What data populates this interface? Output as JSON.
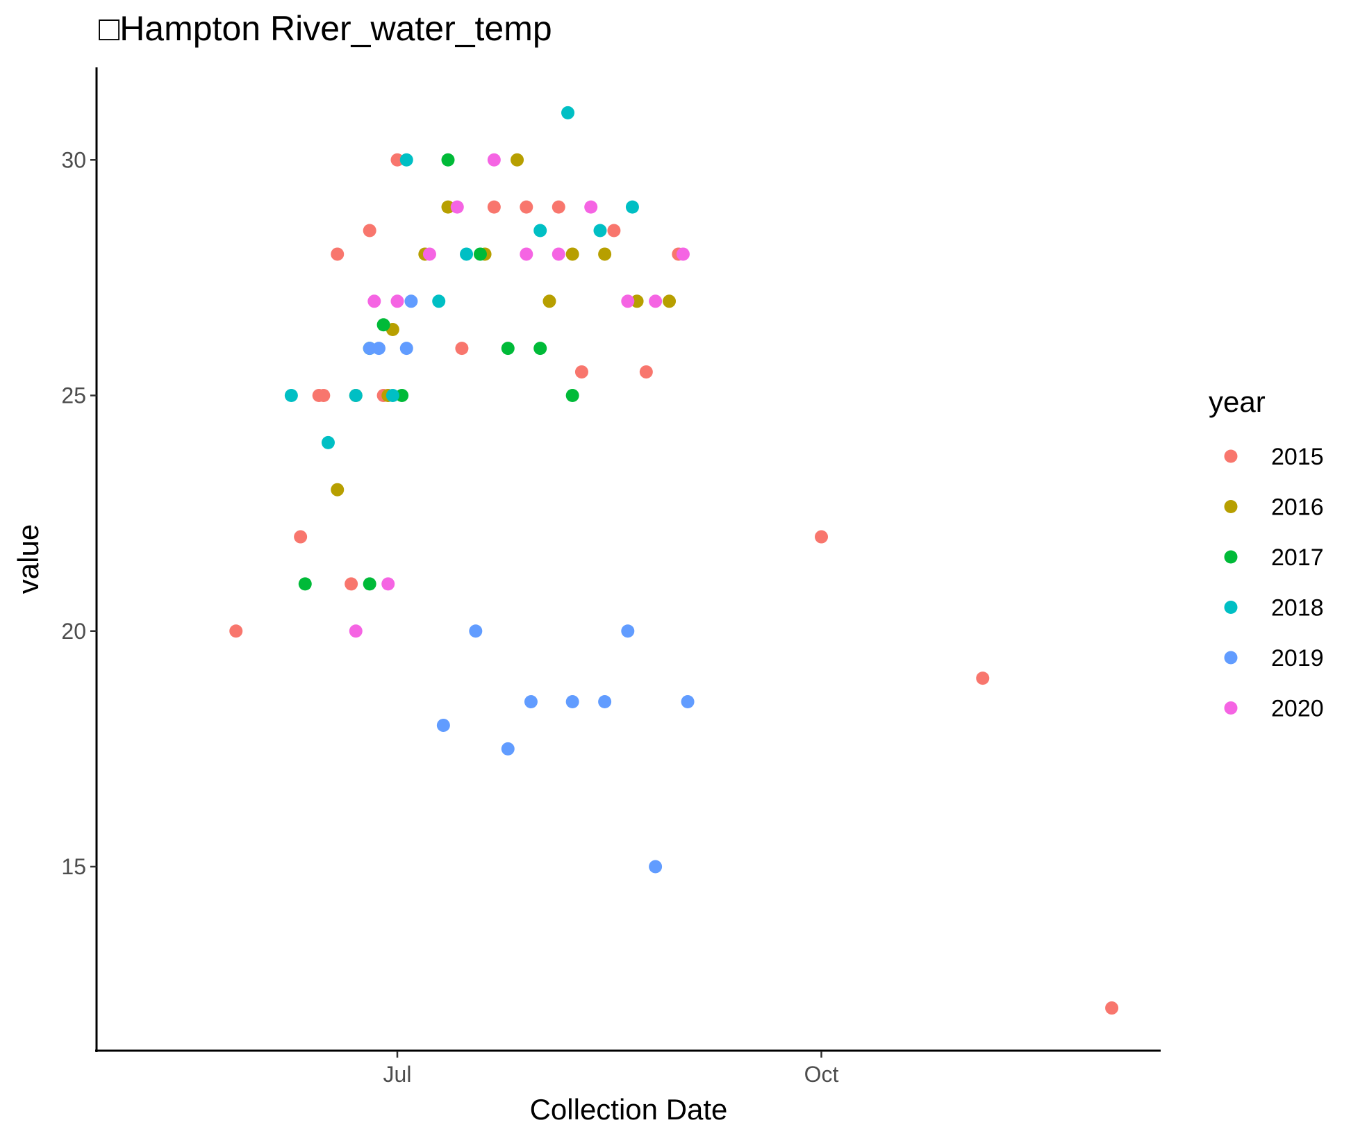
{
  "chart_data": {
    "type": "scatter",
    "title": "□Hampton River_water_temp",
    "xlabel": "Collection Date",
    "ylabel": "value",
    "x_axis": {
      "kind": "date",
      "range": [
        "05-25",
        "11-30"
      ],
      "ticks": [
        {
          "value": "07-01",
          "label": "Jul"
        },
        {
          "value": "10-01",
          "label": "Oct"
        }
      ]
    },
    "y_axis": {
      "range": [
        11.1,
        32.2
      ],
      "ticks": [
        15,
        20,
        25,
        30
      ]
    },
    "grid": false,
    "legend": {
      "title": "year",
      "position": "right"
    },
    "colors": {
      "2015": "#F8766D",
      "2016": "#B79F00",
      "2017": "#00BA38",
      "2018": "#00BFC4",
      "2019": "#619CFF",
      "2020": "#F564E3"
    },
    "series": [
      {
        "name": "2015",
        "points": [
          {
            "x": "05-27",
            "y": 20
          },
          {
            "x": "06-10",
            "y": 22
          },
          {
            "x": "06-14",
            "y": 25
          },
          {
            "x": "06-21",
            "y": 21
          },
          {
            "x": "06-28",
            "y": 25
          },
          {
            "x": "06-15",
            "y": 25
          },
          {
            "x": "06-18",
            "y": 28
          },
          {
            "x": "06-25",
            "y": 28.5
          },
          {
            "x": "07-01",
            "y": 30
          },
          {
            "x": "07-15",
            "y": 26
          },
          {
            "x": "07-22",
            "y": 29
          },
          {
            "x": "07-29",
            "y": 29
          },
          {
            "x": "08-05",
            "y": 29
          },
          {
            "x": "08-10",
            "y": 25.5
          },
          {
            "x": "08-17",
            "y": 28.5
          },
          {
            "x": "08-24",
            "y": 25.5
          },
          {
            "x": "08-31",
            "y": 28
          },
          {
            "x": "10-01",
            "y": 22
          },
          {
            "x": "11-05",
            "y": 19
          },
          {
            "x": "12-03",
            "y": 12
          }
        ]
      },
      {
        "name": "2016",
        "points": [
          {
            "x": "06-18",
            "y": 23
          },
          {
            "x": "06-22",
            "y": 25
          },
          {
            "x": "06-29",
            "y": 25
          },
          {
            "x": "07-07",
            "y": 28
          },
          {
            "x": "07-12",
            "y": 29
          },
          {
            "x": "07-20",
            "y": 28
          },
          {
            "x": "07-27",
            "y": 30
          },
          {
            "x": "08-03",
            "y": 27
          },
          {
            "x": "08-08",
            "y": 28
          },
          {
            "x": "08-15",
            "y": 28
          },
          {
            "x": "08-22",
            "y": 27
          },
          {
            "x": "08-29",
            "y": 27
          },
          {
            "x": "06-30",
            "y": 26.4
          }
        ]
      },
      {
        "name": "2017",
        "points": [
          {
            "x": "06-11",
            "y": 21
          },
          {
            "x": "06-25",
            "y": 21
          },
          {
            "x": "06-25",
            "y": 26
          },
          {
            "x": "07-02",
            "y": 25
          },
          {
            "x": "06-28",
            "y": 26.5
          },
          {
            "x": "07-12",
            "y": 30
          },
          {
            "x": "07-19",
            "y": 28
          },
          {
            "x": "07-25",
            "y": 26
          },
          {
            "x": "08-01",
            "y": 26
          },
          {
            "x": "08-08",
            "y": 25
          }
        ]
      },
      {
        "name": "2018",
        "points": [
          {
            "x": "06-08",
            "y": 25
          },
          {
            "x": "06-16",
            "y": 24
          },
          {
            "x": "06-22",
            "y": 25
          },
          {
            "x": "06-30",
            "y": 25
          },
          {
            "x": "07-03",
            "y": 30
          },
          {
            "x": "07-10",
            "y": 27
          },
          {
            "x": "07-16",
            "y": 28
          },
          {
            "x": "08-01",
            "y": 28.5
          },
          {
            "x": "08-07",
            "y": 31
          },
          {
            "x": "08-14",
            "y": 28.5
          },
          {
            "x": "08-21",
            "y": 29
          }
        ]
      },
      {
        "name": "2019",
        "points": [
          {
            "x": "06-25",
            "y": 26
          },
          {
            "x": "06-27",
            "y": 26
          },
          {
            "x": "07-03",
            "y": 26
          },
          {
            "x": "07-04",
            "y": 27
          },
          {
            "x": "07-11",
            "y": 18
          },
          {
            "x": "07-18",
            "y": 20
          },
          {
            "x": "07-25",
            "y": 17.5
          },
          {
            "x": "07-30",
            "y": 18.5
          },
          {
            "x": "08-08",
            "y": 18.5
          },
          {
            "x": "08-15",
            "y": 18.5
          },
          {
            "x": "08-20",
            "y": 20
          },
          {
            "x": "08-26",
            "y": 15
          },
          {
            "x": "09-02",
            "y": 18.5
          }
        ]
      },
      {
        "name": "2020",
        "points": [
          {
            "x": "06-22",
            "y": 20
          },
          {
            "x": "06-29",
            "y": 21
          },
          {
            "x": "06-26",
            "y": 27
          },
          {
            "x": "07-01",
            "y": 27
          },
          {
            "x": "07-08",
            "y": 28
          },
          {
            "x": "07-14",
            "y": 29
          },
          {
            "x": "07-22",
            "y": 30
          },
          {
            "x": "07-29",
            "y": 28
          },
          {
            "x": "08-05",
            "y": 28
          },
          {
            "x": "08-12",
            "y": 29
          },
          {
            "x": "08-20",
            "y": 27
          },
          {
            "x": "08-26",
            "y": 27
          },
          {
            "x": "09-01",
            "y": 28
          }
        ]
      }
    ]
  }
}
